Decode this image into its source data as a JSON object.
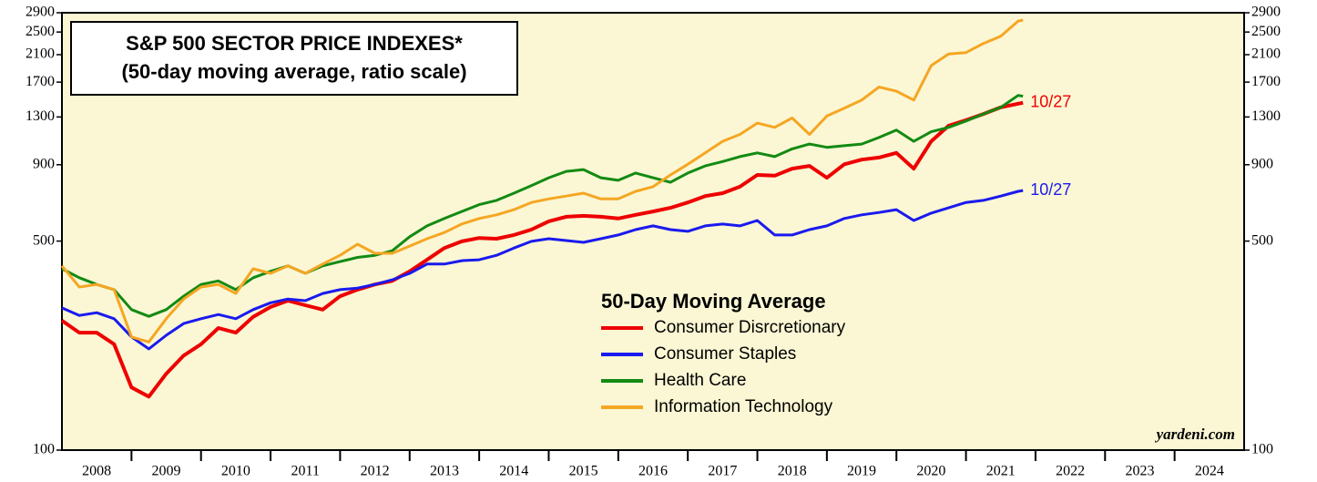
{
  "chart_data": {
    "type": "line",
    "yscale": "log",
    "grid": false,
    "legend_position": "lower center",
    "background": "#fbf7d4",
    "title": "S&P 500 SECTOR PRICE INDEXES*",
    "subtitle": "(50-day moving average, ratio scale)",
    "legend_title": "50-Day Moving Average",
    "source": "yardeni.com",
    "categories": [
      "2008",
      "2009",
      "2010",
      "2011",
      "2012",
      "2013",
      "2014",
      "2015",
      "2016",
      "2017",
      "2018",
      "2019",
      "2020",
      "2021",
      "2022",
      "2023",
      "2024"
    ],
    "xlim": [
      2008,
      2025
    ],
    "ylim": [
      100,
      2900
    ],
    "yticks": [
      100,
      500,
      900,
      1300,
      1700,
      2100,
      2500,
      2900
    ],
    "x": [
      2008,
      2008.25,
      2008.5,
      2008.75,
      2009,
      2009.25,
      2009.5,
      2009.75,
      2010,
      2010.25,
      2010.5,
      2010.75,
      2011,
      2011.25,
      2011.5,
      2011.75,
      2012,
      2012.25,
      2012.5,
      2012.75,
      2013,
      2013.25,
      2013.5,
      2013.75,
      2014,
      2014.25,
      2014.5,
      2014.75,
      2015,
      2015.25,
      2015.5,
      2015.75,
      2016,
      2016.25,
      2016.5,
      2016.75,
      2017,
      2017.25,
      2017.5,
      2017.75,
      2018,
      2018.25,
      2018.5,
      2018.75,
      2019,
      2019.25,
      2019.5,
      2019.75,
      2020,
      2020.25,
      2020.5,
      2020.75,
      2021,
      2021.25,
      2021.5,
      2021.75,
      2021.82
    ],
    "series": [
      {
        "name": "Consumer Disrcretionary",
        "color": "#ee0000",
        "width": 4,
        "end_label": "10/27",
        "values": [
          271,
          247,
          247,
          226,
          162,
          151,
          180,
          207,
          226,
          256,
          247,
          279,
          301,
          316,
          305,
          295,
          327,
          344,
          358,
          368,
          396,
          433,
          474,
          499,
          512,
          509,
          524,
          546,
          582,
          603,
          607,
          603,
          595,
          612,
          628,
          646,
          673,
          707,
          723,
          760,
          832,
          827,
          873,
          892,
          814,
          903,
          936,
          951,
          986,
          873,
          1078,
          1215,
          1268,
          1330,
          1400,
          1440,
          1450
        ]
      },
      {
        "name": "Consumer Staples",
        "color": "#1a1aee",
        "width": 3,
        "end_label": "10/27",
        "values": [
          299,
          282,
          288,
          275,
          239,
          218,
          242,
          265,
          275,
          284,
          275,
          295,
          311,
          320,
          316,
          334,
          344,
          348,
          358,
          371,
          390,
          419,
          419,
          430,
          433,
          448,
          474,
          499,
          509,
          502,
          495,
          509,
          524,
          546,
          562,
          546,
          539,
          562,
          570,
          562,
          586,
          524,
          524,
          546,
          562,
          595,
          612,
          623,
          637,
          586,
          620,
          646,
          673,
          684,
          707,
          733,
          738
        ]
      },
      {
        "name": "Health Care",
        "color": "#138a13",
        "width": 3,
        "values": [
          404,
          377,
          358,
          344,
          295,
          280,
          295,
          327,
          358,
          368,
          344,
          377,
          396,
          413,
          390,
          413,
          427,
          441,
          448,
          464,
          517,
          562,
          595,
          628,
          662,
          684,
          723,
          766,
          814,
          855,
          867,
          814,
          798,
          844,
          814,
          786,
          844,
          892,
          922,
          958,
          986,
          958,
          1017,
          1055,
          1029,
          1042,
          1055,
          1110,
          1175,
          1078,
          1160,
          1200,
          1260,
          1330,
          1400,
          1535,
          1525
        ]
      },
      {
        "name": "Information Technology",
        "color": "#f5a623",
        "width": 3,
        "values": [
          413,
          351,
          358,
          344,
          239,
          230,
          275,
          320,
          351,
          358,
          334,
          404,
          390,
          413,
          390,
          419,
          448,
          488,
          455,
          455,
          481,
          509,
          534,
          570,
          595,
          612,
          637,
          673,
          692,
          707,
          723,
          692,
          692,
          733,
          760,
          832,
          903,
          986,
          1078,
          1137,
          1240,
          1200,
          1290,
          1137,
          1310,
          1390,
          1481,
          1637,
          1585,
          1481,
          1930,
          2110,
          2135,
          2290,
          2420,
          2720,
          2740
        ]
      }
    ]
  }
}
